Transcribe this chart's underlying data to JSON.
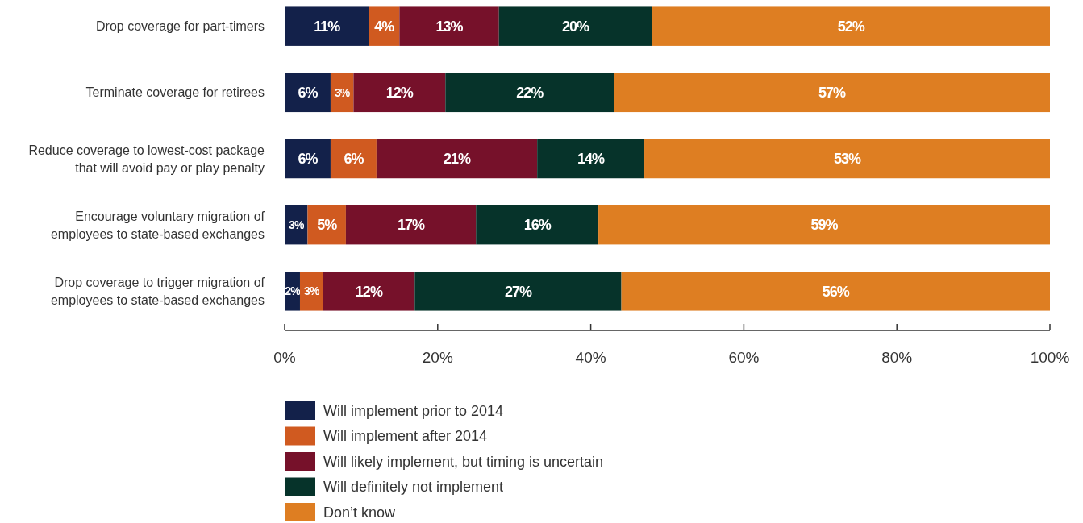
{
  "chart_data": {
    "type": "bar",
    "orientation": "horizontal",
    "stacked": true,
    "legend": "bottom",
    "categories": [
      "Drop coverage for part-timers",
      "Terminate coverage for retirees",
      "Reduce coverage to lowest-cost package that will avoid pay or play penalty",
      "Encourage voluntary migration of employees to state-based exchanges",
      "Drop coverage to trigger migration of employees to state-based exchanges"
    ],
    "xlim": [
      0,
      100
    ],
    "xticks": [
      {
        "value": 0,
        "label": "0%"
      },
      {
        "value": 20,
        "label": "20%"
      },
      {
        "value": 40,
        "label": "40%"
      },
      {
        "value": 60,
        "label": "60%"
      },
      {
        "value": 80,
        "label": "80%"
      },
      {
        "value": 100,
        "label": "100%"
      }
    ],
    "series": [
      {
        "name": "Will implement prior to 2014",
        "color": "#13214a",
        "values": [
          11,
          6,
          6,
          3,
          2
        ],
        "value_labels": [
          "11%",
          "6%",
          "6%",
          "3%",
          "2%"
        ]
      },
      {
        "name": "Will implement after 2014",
        "color": "#d05a20",
        "values": [
          4,
          3,
          6,
          5,
          3
        ],
        "value_labels": [
          "4%",
          "3%",
          "6%",
          "5%",
          "3%"
        ]
      },
      {
        "name": "Will likely implement, but timing is uncertain",
        "color": "#76112a",
        "values": [
          13,
          12,
          21,
          17,
          12
        ],
        "value_labels": [
          "13%",
          "12%",
          "21%",
          "17%",
          "12%"
        ]
      },
      {
        "name": "Will definitely not implement",
        "color": "#06332a",
        "values": [
          20,
          22,
          14,
          16,
          27
        ],
        "value_labels": [
          "20%",
          "22%",
          "14%",
          "16%",
          "27%"
        ]
      },
      {
        "name": "Don’t know",
        "color": "#de7e22",
        "values": [
          52,
          57,
          53,
          59,
          56
        ],
        "value_labels": [
          "52%",
          "57%",
          "53%",
          "59%",
          "56%"
        ]
      }
    ]
  }
}
